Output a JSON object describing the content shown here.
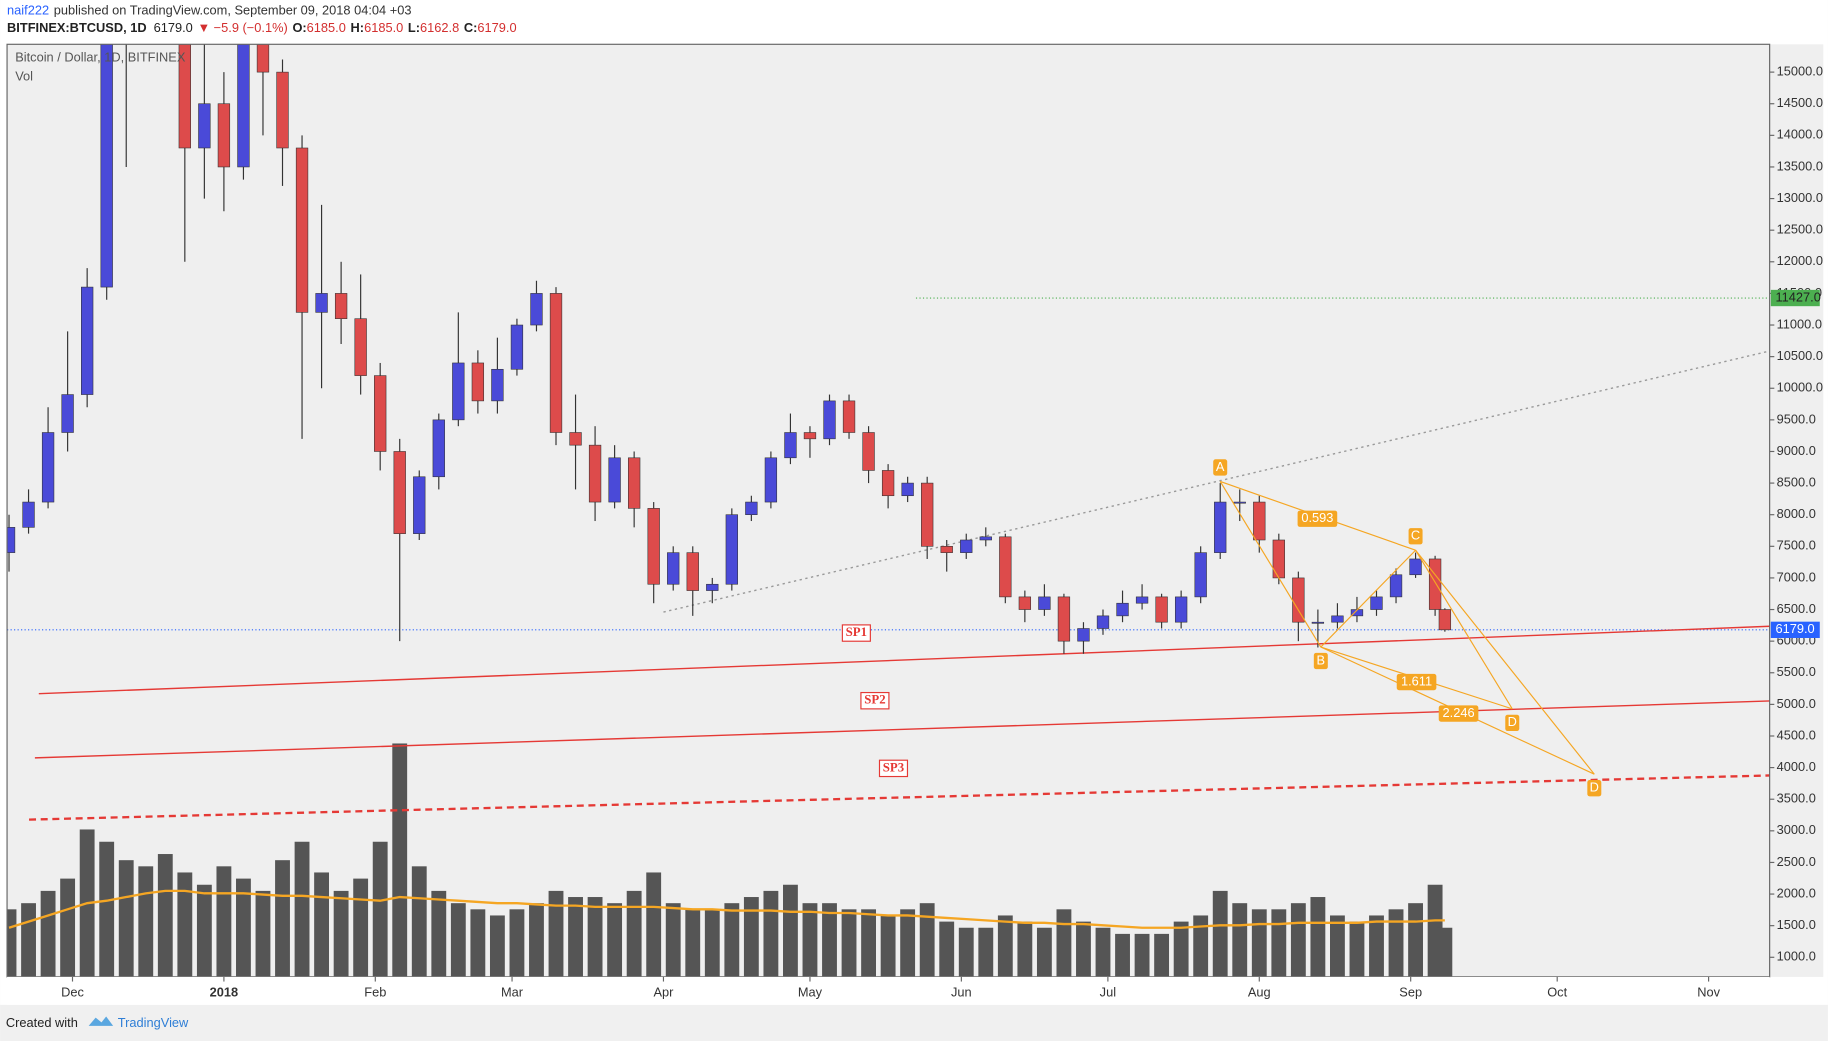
{
  "header": {
    "user": "naif222",
    "published": "published on TradingView.com, September 09, 2018 04:04 +03",
    "symbol": "BITFINEX:BTCUSD, 1D",
    "last": "6179.0",
    "change": "▼ −5.9 (−0.1%)",
    "ohlc": [
      {
        "key": "O:",
        "value": "6185.0"
      },
      {
        "key": "H:",
        "value": "6185.0"
      },
      {
        "key": "L:",
        "value": "6162.8"
      },
      {
        "key": "C:",
        "value": "6179.0"
      }
    ]
  },
  "footer": {
    "created": "Created with",
    "brand": "TradingView"
  },
  "chart_data": {
    "type": "candlestick",
    "title": "Bitcoin / Dollar, 1D, BITFINEX",
    "volume_label": "Vol",
    "up_color": "#4a4ad8",
    "down_color": "#dd4b4b",
    "x": [
      -13,
      -9,
      -5,
      -1,
      3,
      7,
      11,
      15,
      19,
      23,
      27,
      31,
      35,
      39,
      43,
      47,
      51,
      55,
      59,
      63,
      67,
      71,
      75,
      79,
      83,
      87,
      91,
      95,
      99,
      103,
      107,
      111,
      115,
      119,
      123,
      127,
      131,
      135,
      139,
      143,
      147,
      151,
      155,
      159,
      163,
      167,
      171,
      175,
      179,
      183,
      187,
      191,
      195,
      199,
      203,
      207,
      211,
      215,
      219,
      223,
      227,
      231,
      235,
      239,
      243,
      247,
      251,
      255,
      259,
      263,
      267,
      271,
      275,
      279,
      281
    ],
    "open": [
      7400,
      7800,
      8200,
      9300,
      9900,
      11600,
      16000,
      17000,
      19000,
      16500,
      13800,
      14500,
      13500,
      17000,
      15000,
      13800,
      11200,
      11500,
      11100,
      10200,
      9000,
      7700,
      8600,
      9500,
      10400,
      9800,
      10300,
      11000,
      11500,
      9300,
      9100,
      8200,
      8900,
      8100,
      6900,
      7400,
      6800,
      6900,
      8000,
      8200,
      8900,
      9300,
      9200,
      9800,
      9300,
      8700,
      8300,
      8500,
      7500,
      7400,
      7600,
      7650,
      6700,
      6500,
      6700,
      6000,
      6200,
      6400,
      6600,
      6700,
      6300,
      6700,
      7400,
      8200,
      8200,
      7600,
      7000,
      6300,
      6300,
      6400,
      6500,
      6700,
      7050,
      7300,
      6500
    ],
    "high": [
      8000,
      8400,
      9700,
      10900,
      11900,
      16600,
      17900,
      19700,
      19200,
      16800,
      15800,
      15000,
      17200,
      17300,
      15200,
      14000,
      12900,
      12000,
      11800,
      10400,
      9200,
      8700,
      9600,
      11200,
      10600,
      10800,
      11100,
      11700,
      11600,
      9900,
      9400,
      9100,
      9000,
      8200,
      7500,
      7500,
      7000,
      8100,
      8300,
      9000,
      9600,
      9400,
      9900,
      9900,
      9400,
      8800,
      8600,
      8600,
      7600,
      7700,
      7800,
      7700,
      6800,
      6900,
      6750,
      6300,
      6500,
      6800,
      6900,
      6750,
      6800,
      7500,
      8500,
      8400,
      8300,
      7700,
      7100,
      6500,
      6600,
      6700,
      6800,
      7150,
      7400,
      7350,
      6520
    ],
    "low": [
      7100,
      7700,
      8100,
      9000,
      9700,
      11400,
      13500,
      16800,
      15500,
      12000,
      13000,
      12800,
      13300,
      14000,
      13200,
      9200,
      10000,
      10700,
      9900,
      8700,
      6000,
      7600,
      8400,
      9400,
      9600,
      9600,
      10200,
      10900,
      9100,
      8400,
      7900,
      8100,
      7800,
      6600,
      6800,
      6400,
      6600,
      6800,
      7900,
      8100,
      8800,
      8900,
      9100,
      9200,
      8500,
      8100,
      8200,
      7300,
      7100,
      7300,
      7500,
      6600,
      6300,
      6400,
      5800,
      5800,
      6100,
      6300,
      6500,
      6200,
      6200,
      6600,
      7300,
      7900,
      7400,
      6900,
      6000,
      5900,
      6200,
      6300,
      6400,
      6600,
      7000,
      6400,
      6150
    ],
    "close": [
      7800,
      8200,
      9300,
      9900,
      11600,
      16000,
      17000,
      19000,
      16500,
      13800,
      14500,
      13500,
      17000,
      15000,
      13800,
      11200,
      11500,
      11100,
      10200,
      9000,
      7700,
      8600,
      9500,
      10400,
      9800,
      10300,
      11000,
      11500,
      9300,
      9100,
      8200,
      8900,
      8100,
      6900,
      7400,
      6800,
      6900,
      8000,
      8200,
      8900,
      9300,
      9200,
      9800,
      9300,
      8700,
      8300,
      8500,
      7500,
      7400,
      7600,
      7650,
      6700,
      6500,
      6700,
      6000,
      6200,
      6400,
      6600,
      6700,
      6300,
      6700,
      7400,
      8200,
      8200,
      7600,
      7000,
      6300,
      6300,
      6400,
      6500,
      6700,
      7050,
      7300,
      6500,
      6179
    ],
    "volume": {
      "color": "#555555",
      "vlim": [
        0,
        260
      ],
      "values": [
        55,
        60,
        70,
        80,
        120,
        110,
        95,
        90,
        100,
        85,
        75,
        90,
        80,
        70,
        95,
        110,
        85,
        70,
        80,
        110,
        190,
        90,
        70,
        60,
        55,
        50,
        55,
        60,
        70,
        65,
        65,
        60,
        70,
        85,
        60,
        55,
        55,
        60,
        65,
        70,
        75,
        60,
        60,
        55,
        55,
        50,
        55,
        60,
        45,
        40,
        40,
        50,
        45,
        40,
        55,
        45,
        40,
        35,
        35,
        35,
        45,
        50,
        70,
        60,
        55,
        55,
        60,
        65,
        50,
        45,
        50,
        55,
        60,
        75,
        40
      ],
      "ma": {
        "color": "#f5a623",
        "values": [
          40,
          45,
          50,
          55,
          60,
          62,
          65,
          68,
          70,
          70,
          68,
          68,
          68,
          67,
          66,
          66,
          65,
          64,
          63,
          62,
          65,
          64,
          63,
          62,
          61,
          60,
          60,
          59,
          58,
          58,
          57,
          57,
          57,
          57,
          56,
          55,
          55,
          54,
          54,
          54,
          53,
          53,
          52,
          52,
          51,
          50,
          50,
          49,
          48,
          47,
          46,
          45,
          44,
          44,
          43,
          43,
          42,
          41,
          40,
          40,
          40,
          41,
          42,
          42,
          43,
          43,
          44,
          44,
          44,
          44,
          45,
          45,
          45,
          46,
          46
        ]
      }
    },
    "xlim": [
      -13.4,
      347.5
    ],
    "xticks": [
      {
        "value": 0,
        "label": "Dec"
      },
      {
        "value": 31,
        "label": "2018"
      },
      {
        "value": 62,
        "label": "Feb"
      },
      {
        "value": 90,
        "label": "Mar"
      },
      {
        "value": 121,
        "label": "Apr"
      },
      {
        "value": 151,
        "label": "May"
      },
      {
        "value": 182,
        "label": "Jun"
      },
      {
        "value": 212,
        "label": "Jul"
      },
      {
        "value": 243,
        "label": "Aug"
      },
      {
        "value": 274,
        "label": "Sep"
      },
      {
        "value": 304,
        "label": "Oct"
      },
      {
        "value": 335,
        "label": "Nov"
      }
    ],
    "ylim": [
      690,
      15440
    ],
    "yticks": [
      {
        "value": 1000,
        "label": "1000.0"
      },
      {
        "value": 1500,
        "label": "1500.0"
      },
      {
        "value": 2000,
        "label": "2000.0"
      },
      {
        "value": 2500,
        "label": "2500.0"
      },
      {
        "value": 3000,
        "label": "3000.0"
      },
      {
        "value": 3500,
        "label": "3500.0"
      },
      {
        "value": 4000,
        "label": "4000.0"
      },
      {
        "value": 4500,
        "label": "4500.0"
      },
      {
        "value": 5000,
        "label": "5000.0"
      },
      {
        "value": 5500,
        "label": "5500.0"
      },
      {
        "value": 6000,
        "label": "6000.0"
      },
      {
        "value": 6500,
        "label": "6500.0"
      },
      {
        "value": 7000,
        "label": "7000.0"
      },
      {
        "value": 7500,
        "label": "7500.0"
      },
      {
        "value": 8000,
        "label": "8000.0"
      },
      {
        "value": 8500,
        "label": "8500.0"
      },
      {
        "value": 9000,
        "label": "9000.0"
      },
      {
        "value": 9500,
        "label": "9500.0"
      },
      {
        "value": 10000,
        "label": "10000.0"
      },
      {
        "value": 10500,
        "label": "10500.0"
      },
      {
        "value": 11000,
        "label": "11000.0"
      },
      {
        "value": 11500,
        "label": "11500.0"
      },
      {
        "value": 12000,
        "label": "12000.0"
      },
      {
        "value": 12500,
        "label": "12500.0"
      },
      {
        "value": 13000,
        "label": "13000.0"
      },
      {
        "value": 13500,
        "label": "13500.0"
      },
      {
        "value": 14000,
        "label": "14000.0"
      },
      {
        "value": 14500,
        "label": "14500.0"
      },
      {
        "value": 15000,
        "label": "15000.0"
      }
    ],
    "grid": false,
    "price_lines": [
      {
        "value": 11427,
        "label": "11427.0",
        "color": "#4caf50",
        "x_start": 172.7
      },
      {
        "value": 6179,
        "label": "6179.0",
        "color": "#2962ff",
        "x_start": -13.4
      }
    ],
    "trend_lines": [
      {
        "name": "SP1",
        "color": "#e53935",
        "style": "solid",
        "x": [
          -6.9,
          348.7
        ],
        "y": [
          5169,
          6239
        ],
        "label_x": 160.5,
        "label_y": 6128
      },
      {
        "name": "SP2",
        "color": "#e53935",
        "style": "solid",
        "x": [
          -7.7,
          348.7
        ],
        "y": [
          4154,
          5058
        ],
        "label_x": 164.3,
        "label_y": 5058
      },
      {
        "name": "SP3",
        "color": "#e53935",
        "style": "dashed",
        "x": [
          -8.9,
          348.7
        ],
        "y": [
          3177,
          3878
        ],
        "label_x": 168.1,
        "label_y": 3988
      },
      {
        "color": "#999999",
        "style": "dotted",
        "x": [
          121,
          348.7
        ],
        "y": [
          6460,
          10611
        ]
      }
    ],
    "pattern": {
      "color": "#f5a623",
      "points": [
        {
          "label": "A",
          "x": 235,
          "y": 8526
        },
        {
          "label": "B",
          "x": 255.6,
          "y": 5907
        },
        {
          "label": "C",
          "x": 275,
          "y": 7438
        },
        {
          "label": "D",
          "x": 294.8,
          "y": 4929
        },
        {
          "label": "D",
          "x": 311.6,
          "y": 3896
        }
      ],
      "ratios": [
        {
          "value": 0.593,
          "x": 254.9,
          "y": 7936
        },
        {
          "value": 1.611,
          "x": 275.2,
          "y": 5353
        },
        {
          "value": 2.246,
          "x": 283.8,
          "y": 4855
        }
      ]
    }
  }
}
